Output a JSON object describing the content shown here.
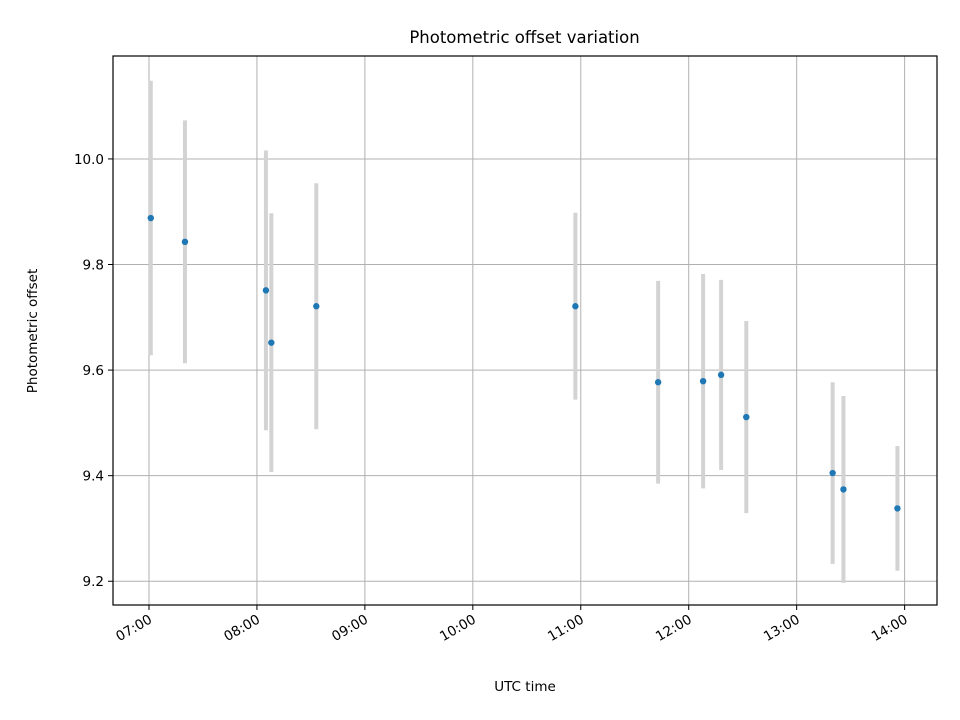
{
  "chart_data": {
    "type": "scatter",
    "title": "Photometric offset variation",
    "xlabel": "UTC time",
    "ylabel": "Photometric offset",
    "x_tick_labels": [
      "07:00",
      "08:00",
      "09:00",
      "10:00",
      "11:00",
      "12:00",
      "13:00",
      "14:00"
    ],
    "y_tick_labels": [
      "9.2",
      "9.4",
      "9.6",
      "9.8",
      "10.0"
    ],
    "xlim": [
      "06:40",
      "14:18"
    ],
    "ylim": [
      9.155,
      10.195
    ],
    "y_ticks": [
      9.2,
      9.4,
      9.6,
      9.8,
      10.0
    ],
    "grid": true,
    "marker_color": "#1f77b4",
    "errorbar_color": "#d3d3d3",
    "points": [
      {
        "x": "07:01",
        "y": 9.888,
        "err": 0.26
      },
      {
        "x": "07:20",
        "y": 9.843,
        "err": 0.23
      },
      {
        "x": "08:05",
        "y": 9.751,
        "err": 0.265
      },
      {
        "x": "08:08",
        "y": 9.652,
        "err": 0.245
      },
      {
        "x": "08:33",
        "y": 9.721,
        "err": 0.233
      },
      {
        "x": "10:57",
        "y": 9.721,
        "err": 0.177
      },
      {
        "x": "11:43",
        "y": 9.577,
        "err": 0.192
      },
      {
        "x": "12:08",
        "y": 9.579,
        "err": 0.203
      },
      {
        "x": "12:18",
        "y": 9.591,
        "err": 0.18
      },
      {
        "x": "12:32",
        "y": 9.511,
        "err": 0.182
      },
      {
        "x": "13:20",
        "y": 9.405,
        "err": 0.172
      },
      {
        "x": "13:26",
        "y": 9.374,
        "err": 0.177
      },
      {
        "x": "13:56",
        "y": 9.338,
        "err": 0.118
      }
    ]
  }
}
